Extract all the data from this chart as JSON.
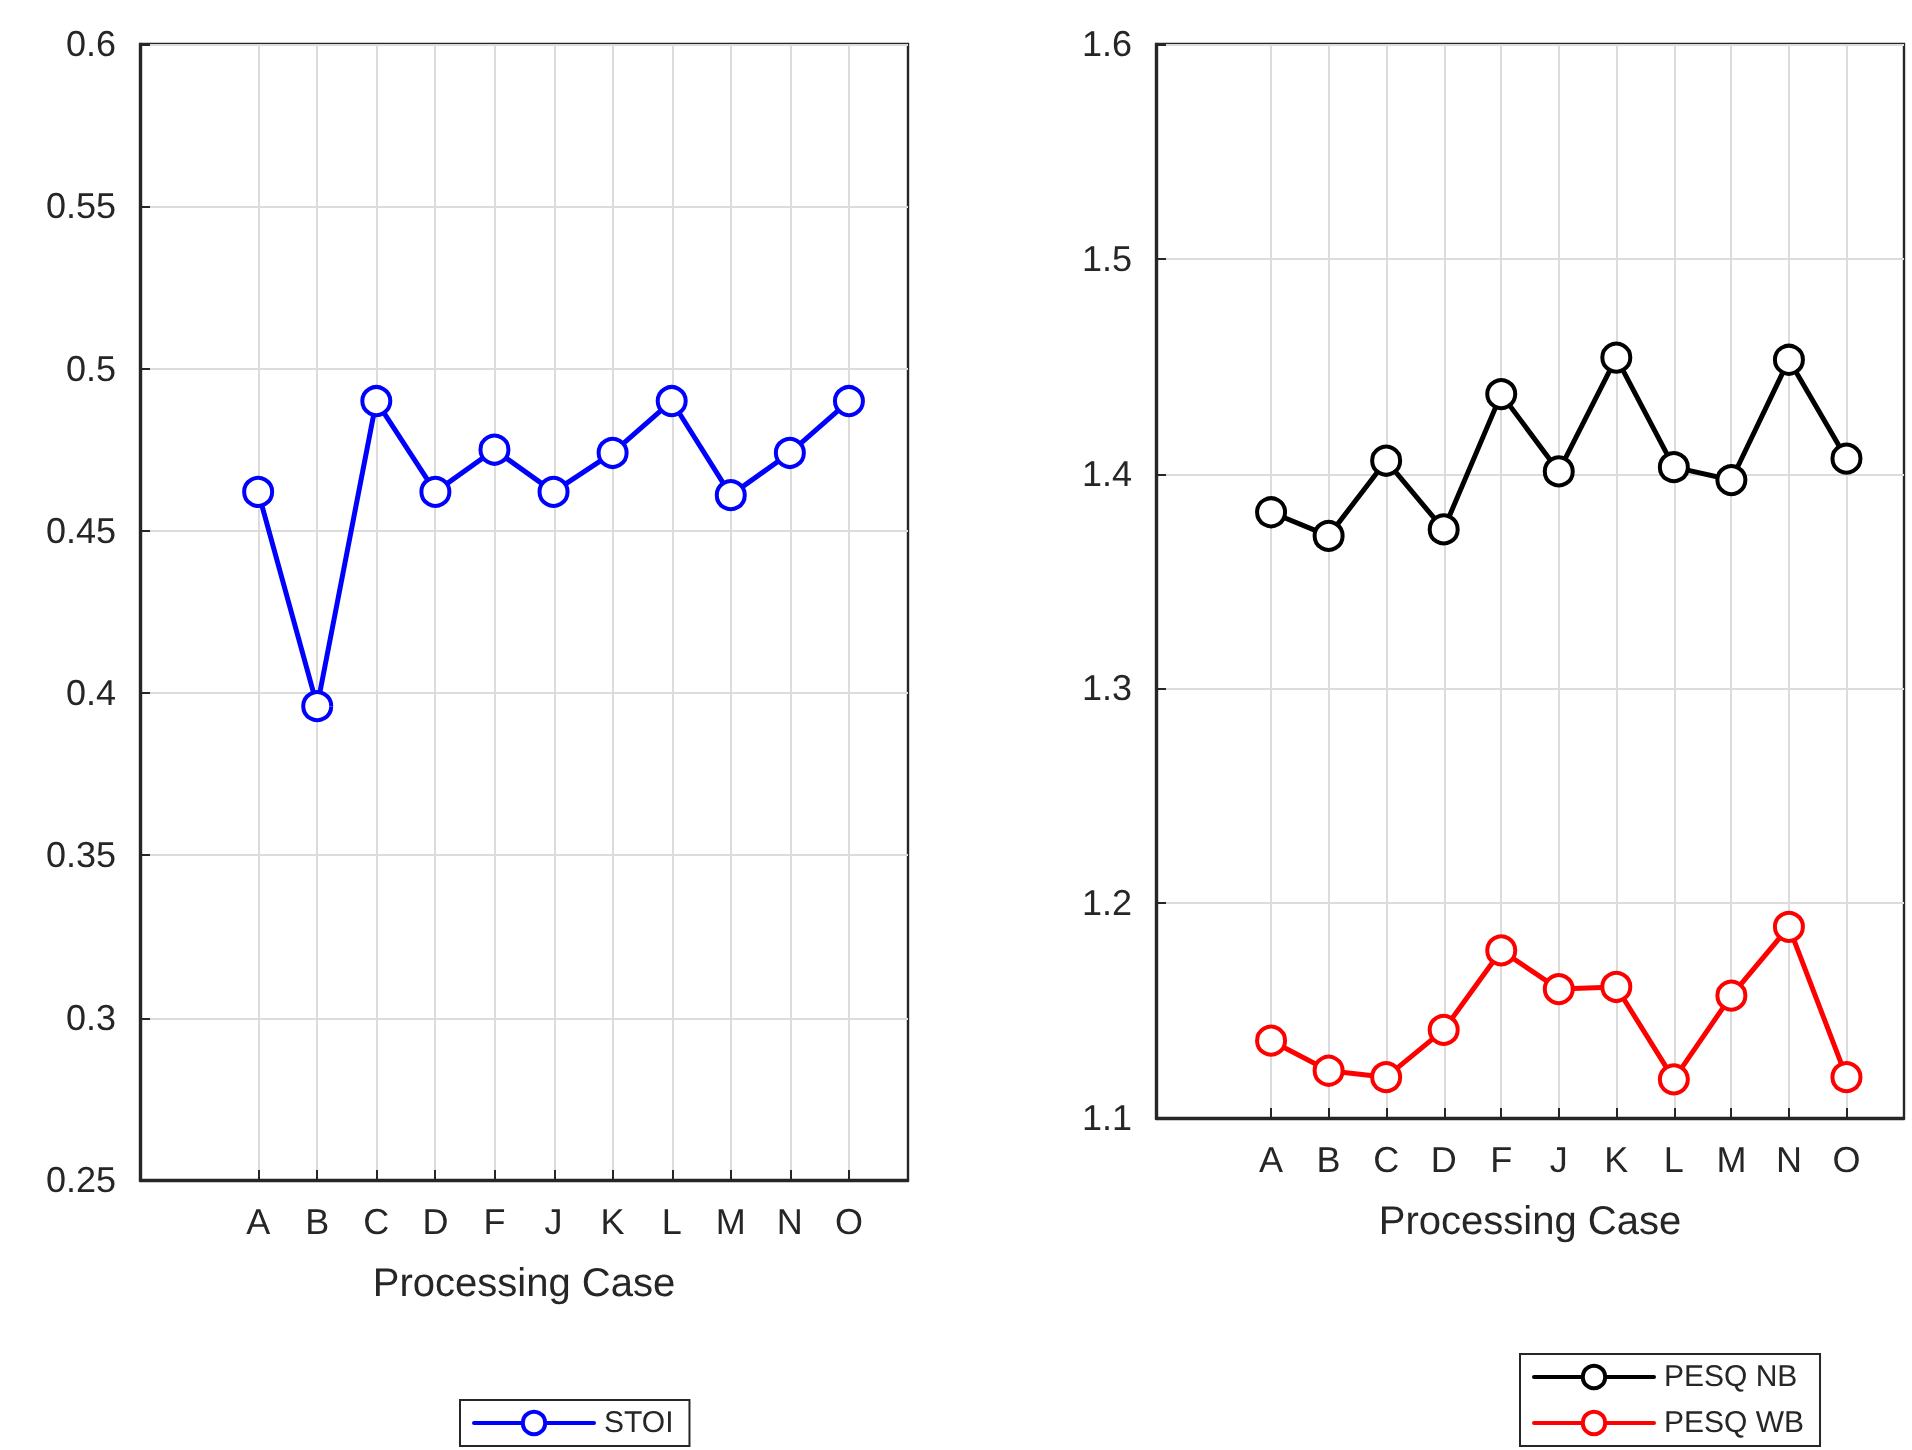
{
  "chart_data": [
    {
      "type": "line",
      "xlabel": "Processing Case",
      "categories": [
        null,
        null,
        "A",
        "B",
        "C",
        "D",
        "F",
        "J",
        "K",
        "L",
        "M",
        "N",
        "O",
        null
      ],
      "ylim": [
        0.25,
        0.6
      ],
      "yticks": [
        0.25,
        0.3,
        0.35,
        0.4,
        0.45,
        0.5,
        0.55,
        0.6
      ],
      "grid": true,
      "legend": "bottom",
      "marker": "circle",
      "line_style": "solid",
      "series": [
        {
          "name": "STOI",
          "color": "#0000ff",
          "values": [
            null,
            null,
            0.462,
            0.396,
            0.49,
            0.462,
            0.475,
            0.462,
            0.474,
            0.49,
            0.461,
            0.474,
            0.49,
            null
          ]
        }
      ]
    },
    {
      "type": "line",
      "xlabel": "Processing Case",
      "categories": [
        null,
        null,
        "A",
        "B",
        "C",
        "D",
        "F",
        "J",
        "K",
        "L",
        "M",
        "N",
        "O",
        null
      ],
      "ylim": [
        1.1,
        1.6
      ],
      "yticks": [
        1.1,
        1.2,
        1.3,
        1.4,
        1.5,
        1.6
      ],
      "grid": true,
      "legend": "bottom",
      "marker": "circle",
      "line_style": "solid",
      "series": [
        {
          "name": "PESQ NB",
          "color": "#000000",
          "values": [
            null,
            null,
            1.382,
            1.371,
            1.406,
            1.374,
            1.437,
            1.401,
            1.454,
            1.403,
            1.397,
            1.453,
            1.407,
            null
          ]
        },
        {
          "name": "PESQ WB",
          "color": "#ff0000",
          "values": [
            null,
            null,
            1.136,
            1.122,
            1.119,
            1.141,
            1.178,
            1.16,
            1.161,
            1.118,
            1.157,
            1.189,
            1.119,
            null
          ]
        }
      ]
    }
  ]
}
